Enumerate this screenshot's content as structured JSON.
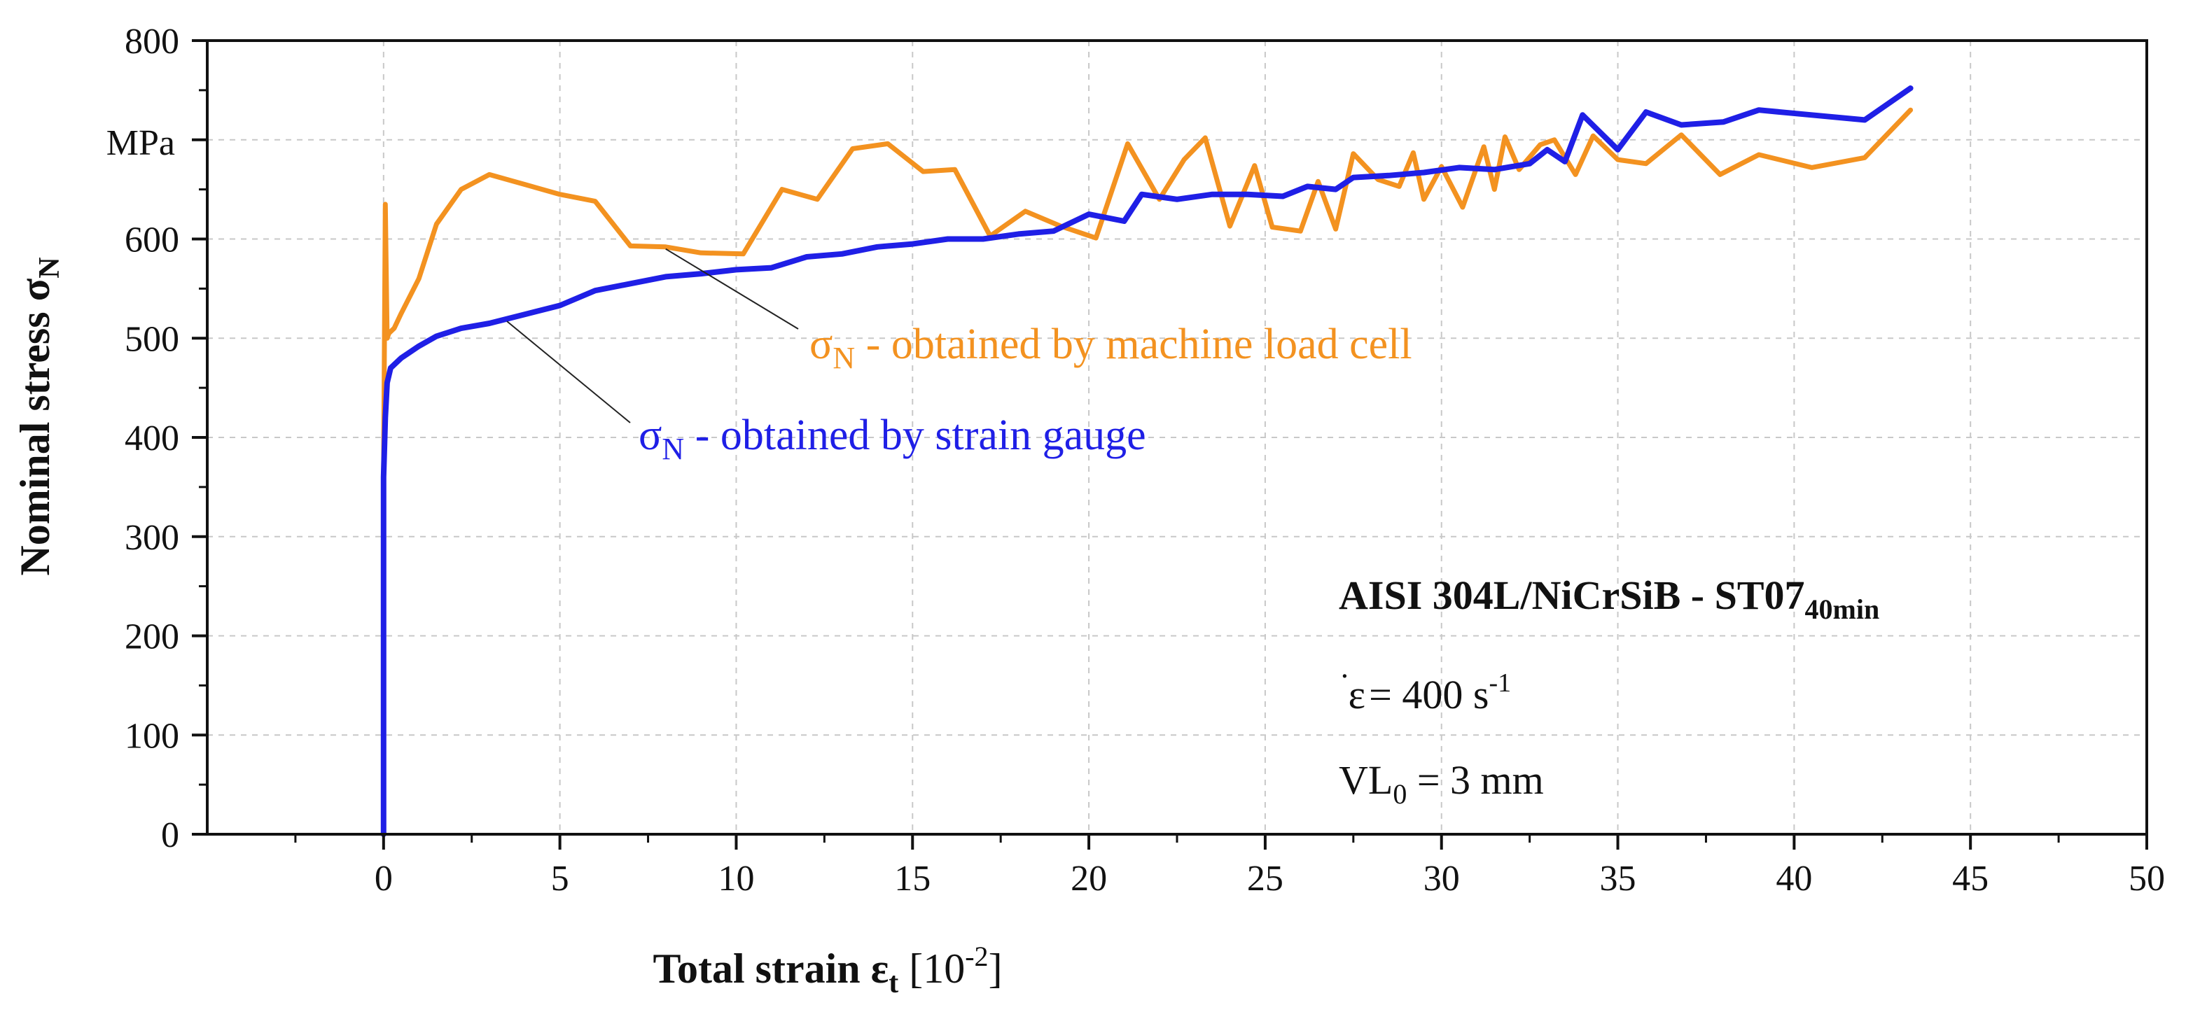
{
  "chart_data": {
    "type": "line",
    "title": "",
    "xlabel": {
      "main": "Total strain ε",
      "sub": "t",
      "unit_open": " [10",
      "unit_exp": "-2",
      "unit_close": "]"
    },
    "ylabel": {
      "main": "Nominal stress σ",
      "sub": "N"
    },
    "y_unit_label": "MPa",
    "xlim": [
      -5,
      50
    ],
    "ylim": [
      0,
      800
    ],
    "x_ticks": [
      0,
      5,
      10,
      15,
      20,
      25,
      30,
      35,
      40,
      45,
      50
    ],
    "y_ticks": [
      0,
      100,
      200,
      300,
      400,
      500,
      600,
      700,
      800
    ],
    "y_tick_labels": [
      "0",
      "100",
      "200",
      "300",
      "400",
      "500",
      "600",
      "",
      "800"
    ],
    "x_minor_ticks": [
      -2.5,
      2.5,
      7.5,
      12.5,
      17.5,
      22.5,
      27.5,
      32.5,
      37.5,
      42.5,
      47.5
    ],
    "grid": true,
    "series": [
      {
        "name": "σN - obtained by machine load cell",
        "color": "#F39220",
        "x": [
          0,
          0.05,
          0.1,
          0.15,
          0.3,
          0.5,
          1.0,
          1.5,
          2.2,
          3.0,
          4.0,
          5.0,
          6.0,
          7.0,
          8.0,
          9.0,
          10.2,
          11.3,
          12.3,
          13.3,
          14.3,
          15.3,
          16.2,
          17.2,
          18.2,
          19.2,
          20.2,
          21.1,
          22.0,
          22.7,
          23.3,
          24.0,
          24.7,
          25.2,
          26.0,
          26.5,
          27.0,
          27.5,
          28.2,
          28.8,
          29.2,
          29.5,
          30.0,
          30.6,
          31.2,
          31.5,
          31.8,
          32.2,
          32.8,
          33.2,
          33.8,
          34.3,
          35.0,
          35.8,
          36.8,
          37.9,
          39.0,
          40.5,
          42.0,
          43.3
        ],
        "y": [
          360,
          635,
          500,
          505,
          510,
          525,
          560,
          615,
          650,
          665,
          655,
          645,
          638,
          593,
          592,
          586,
          585,
          650,
          640,
          691,
          696,
          668,
          670,
          603,
          628,
          613,
          601,
          696,
          640,
          680,
          702,
          613,
          674,
          612,
          608,
          658,
          610,
          686,
          660,
          653,
          687,
          640,
          673,
          632,
          693,
          650,
          703,
          670,
          695,
          700,
          665,
          704,
          680,
          676,
          705,
          665,
          685,
          672,
          682,
          730
        ],
        "label": "σ",
        "label_sub": "N",
        "label_rest": " - obtained by machine load cell"
      },
      {
        "name": "σN - obtained by strain gauge",
        "color": "#1F1FE6",
        "x": [
          0,
          0,
          0.05,
          0.1,
          0.2,
          0.5,
          1.0,
          1.5,
          2.2,
          3.0,
          4.0,
          5.0,
          6.0,
          7.0,
          8.0,
          9.0,
          10.0,
          11.0,
          12.0,
          13.0,
          14.0,
          15.0,
          16.0,
          17.0,
          18.0,
          19.0,
          20.0,
          21.0,
          21.5,
          22.5,
          23.5,
          24.5,
          25.5,
          26.2,
          27.0,
          27.5,
          28.5,
          29.5,
          30.5,
          31.5,
          32.5,
          33.0,
          33.5,
          34.0,
          35.0,
          35.8,
          36.8,
          38.0,
          39.0,
          40.5,
          42.0,
          43.3
        ],
        "y": [
          0,
          360,
          420,
          455,
          470,
          480,
          492,
          502,
          510,
          515,
          524,
          533,
          548,
          555,
          562,
          565,
          569,
          571,
          582,
          585,
          592,
          595,
          600,
          600,
          605,
          608,
          625,
          618,
          645,
          640,
          645,
          645,
          643,
          653,
          650,
          662,
          664,
          667,
          672,
          670,
          676,
          690,
          678,
          725,
          690,
          728,
          715,
          718,
          730,
          725,
          720,
          752
        ],
        "label": "σ",
        "label_sub": "N",
        "label_rest": " - obtained by strain gauge"
      }
    ],
    "annotation_text": {
      "material_main": "AISI 304L/NiCrSiB - ST07",
      "material_sub": "40min",
      "rate_symbol": "ε",
      "rate_dot": "˙",
      "rate_mid": " = 400 s",
      "rate_exp": "-1",
      "vl_main": "VL",
      "vl_sub": "0",
      "vl_rest": " = 3 mm"
    }
  }
}
